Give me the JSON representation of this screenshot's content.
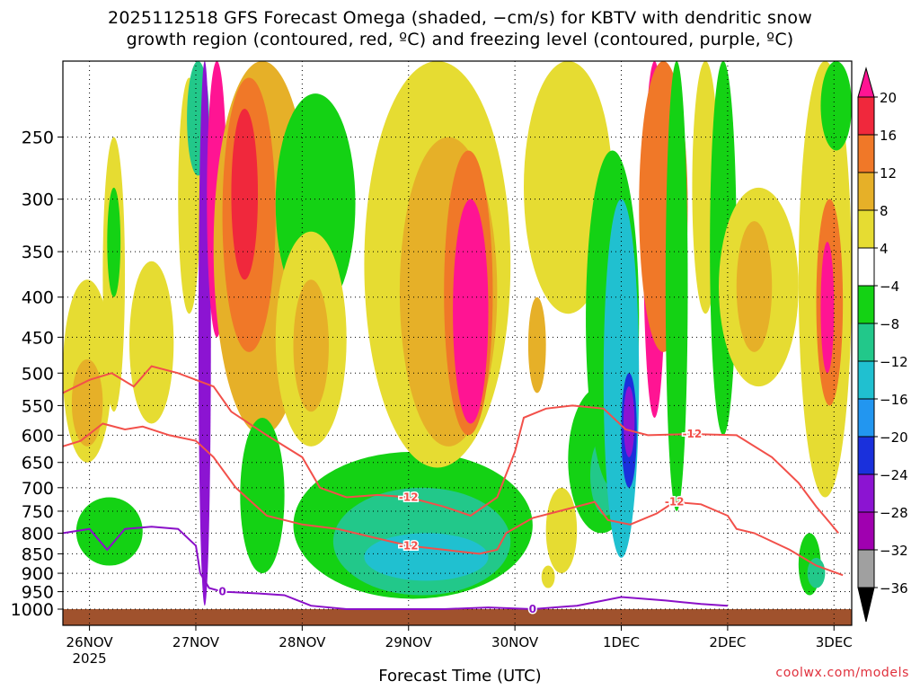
{
  "title_line1": "2025112518 GFS Forecast Omega (shaded, −cm/s) for KBTV with dendritic snow",
  "title_line2": "growth region (contoured, red, ºC) and freezing level (contoured, purple, ºC)",
  "xlabel": "Forecast Time (UTC)",
  "credit": "coolwx.com/models",
  "colors": {
    "snow_contour": "#f2504a",
    "freezing_contour": "#8a10c8",
    "ground": "#a0522d"
  },
  "chart_data": {
    "type": "heatmap",
    "x_ticks": [
      {
        "label": "26NOV",
        "sublabel": "2025",
        "value": 0
      },
      {
        "label": "27NOV",
        "value": 24
      },
      {
        "label": "28NOV",
        "value": 48
      },
      {
        "label": "29NOV",
        "value": 72
      },
      {
        "label": "30NOV",
        "value": 96
      },
      {
        "label": "1DEC",
        "value": 120
      },
      {
        "label": "2DEC",
        "value": 144
      },
      {
        "label": "3DEC",
        "value": 168
      }
    ],
    "xlim": [
      -6,
      172
    ],
    "y_ticks": [
      250,
      300,
      350,
      400,
      450,
      500,
      550,
      600,
      650,
      700,
      750,
      800,
      850,
      900,
      950,
      1000
    ],
    "ylim": [
      200,
      1000
    ],
    "y_scale": "log-pressure",
    "grid": true,
    "colorbar": {
      "ticks": [
        "20",
        "16",
        "12",
        "8",
        "4",
        "−4",
        "−8",
        "−12",
        "−16",
        "−20",
        "−24",
        "−28",
        "−32",
        "−36"
      ],
      "bins": [
        {
          "range": [
            20,
            99
          ],
          "color": "#ff1493"
        },
        {
          "range": [
            16,
            20
          ],
          "color": "#f0283c"
        },
        {
          "range": [
            12,
            16
          ],
          "color": "#f07828"
        },
        {
          "range": [
            8,
            12
          ],
          "color": "#e6b028"
        },
        {
          "range": [
            4,
            8
          ],
          "color": "#e6dc32"
        },
        {
          "range": [
            -4,
            4
          ],
          "color": "#ffffff"
        },
        {
          "range": [
            -8,
            -4
          ],
          "color": "#14d214"
        },
        {
          "range": [
            -12,
            -8
          ],
          "color": "#22c88a"
        },
        {
          "range": [
            -16,
            -12
          ],
          "color": "#20c0d0"
        },
        {
          "range": [
            -20,
            -16
          ],
          "color": "#2296f0"
        },
        {
          "range": [
            -24,
            -20
          ],
          "color": "#1a30dc"
        },
        {
          "range": [
            -28,
            -24
          ],
          "color": "#8c14d2"
        },
        {
          "range": [
            -32,
            -28
          ],
          "color": "#a000b0"
        },
        {
          "range": [
            -36,
            -32
          ],
          "color": "#a0a0a0"
        },
        {
          "range": [
            -99,
            -36
          ],
          "color": "#000000"
        }
      ]
    },
    "omega_regions": [
      {
        "value": 6,
        "x": [
          -6,
          5
        ],
        "p": [
          380,
          650
        ]
      },
      {
        "value": 10,
        "x": [
          -4,
          3
        ],
        "p": [
          480,
          620
        ]
      },
      {
        "value": 6,
        "x": [
          3,
          8
        ],
        "p": [
          250,
          560
        ]
      },
      {
        "value": 6,
        "x": [
          9,
          19
        ],
        "p": [
          360,
          580
        ]
      },
      {
        "value": -6,
        "x": [
          -3,
          12
        ],
        "p": [
          720,
          880
        ]
      },
      {
        "value": -6,
        "x": [
          4,
          7
        ],
        "p": [
          290,
          400
        ]
      },
      {
        "value": 6,
        "x": [
          20,
          25
        ],
        "p": [
          210,
          420
        ]
      },
      {
        "value": -10,
        "x": [
          22,
          27
        ],
        "p": [
          200,
          280
        ]
      },
      {
        "value": -26,
        "x": [
          24.6,
          27.4
        ],
        "p": [
          200,
          990
        ]
      },
      {
        "value": 22,
        "x": [
          26.5,
          31
        ],
        "p": [
          200,
          450
        ]
      },
      {
        "value": 8,
        "x": [
          28,
          50
        ],
        "p": [
          200,
          600
        ]
      },
      {
        "value": 14,
        "x": [
          30,
          42
        ],
        "p": [
          210,
          470
        ]
      },
      {
        "value": 18,
        "x": [
          32,
          38
        ],
        "p": [
          230,
          380
        ]
      },
      {
        "value": -6,
        "x": [
          34,
          44
        ],
        "p": [
          570,
          900
        ]
      },
      {
        "value": -6,
        "x": [
          42,
          60
        ],
        "p": [
          220,
          420
        ]
      },
      {
        "value": 6,
        "x": [
          42,
          58
        ],
        "p": [
          330,
          620
        ]
      },
      {
        "value": 10,
        "x": [
          46,
          54
        ],
        "p": [
          380,
          560
        ]
      },
      {
        "value": -6,
        "x": [
          46,
          100
        ],
        "p": [
          630,
          970
        ]
      },
      {
        "value": -10,
        "x": [
          55,
          95
        ],
        "p": [
          700,
          960
        ]
      },
      {
        "value": -14,
        "x": [
          62,
          90
        ],
        "p": [
          800,
          920
        ]
      },
      {
        "value": 6,
        "x": [
          62,
          95
        ],
        "p": [
          200,
          660
        ]
      },
      {
        "value": 10,
        "x": [
          70,
          92
        ],
        "p": [
          250,
          620
        ]
      },
      {
        "value": 14,
        "x": [
          80,
          91
        ],
        "p": [
          260,
          600
        ]
      },
      {
        "value": 22,
        "x": [
          82,
          90
        ],
        "p": [
          300,
          580
        ]
      },
      {
        "value": 6,
        "x": [
          98,
          118
        ],
        "p": [
          200,
          420
        ]
      },
      {
        "value": 10,
        "x": [
          99,
          103
        ],
        "p": [
          400,
          530
        ]
      },
      {
        "value": 6,
        "x": [
          103,
          110
        ],
        "p": [
          700,
          900
        ]
      },
      {
        "value": -6,
        "x": [
          108,
          123
        ],
        "p": [
          520,
          800
        ]
      },
      {
        "value": -10,
        "x": [
          113,
          120
        ],
        "p": [
          600,
          760
        ]
      },
      {
        "value": -6,
        "x": [
          112,
          124
        ],
        "p": [
          260,
          700
        ]
      },
      {
        "value": -14,
        "x": [
          116,
          124
        ],
        "p": [
          300,
          860
        ]
      },
      {
        "value": -22,
        "x": [
          120,
          123.5
        ],
        "p": [
          500,
          700
        ]
      },
      {
        "value": -26,
        "x": [
          120.5,
          123
        ],
        "p": [
          520,
          640
        ]
      },
      {
        "value": 22,
        "x": [
          125,
          130
        ],
        "p": [
          200,
          570
        ]
      },
      {
        "value": 14,
        "x": [
          124,
          135
        ],
        "p": [
          200,
          470
        ]
      },
      {
        "value": -6,
        "x": [
          130,
          135
        ],
        "p": [
          200,
          750
        ]
      },
      {
        "value": 6,
        "x": [
          136,
          142
        ],
        "p": [
          200,
          420
        ]
      },
      {
        "value": -6,
        "x": [
          140,
          146
        ],
        "p": [
          200,
          600
        ]
      },
      {
        "value": 6,
        "x": [
          142,
          160
        ],
        "p": [
          290,
          520
        ]
      },
      {
        "value": 10,
        "x": [
          146,
          154
        ],
        "p": [
          320,
          470
        ]
      },
      {
        "value": 6,
        "x": [
          160,
          172
        ],
        "p": [
          200,
          720
        ]
      },
      {
        "value": 14,
        "x": [
          164,
          170
        ],
        "p": [
          300,
          550
        ]
      },
      {
        "value": 22,
        "x": [
          165,
          168
        ],
        "p": [
          340,
          500
        ]
      },
      {
        "value": -6,
        "x": [
          165,
          172
        ],
        "p": [
          200,
          260
        ]
      },
      {
        "value": -6,
        "x": [
          160,
          165
        ],
        "p": [
          800,
          960
        ]
      },
      {
        "value": -10,
        "x": [
          162,
          166
        ],
        "p": [
          860,
          940
        ]
      },
      {
        "value": 6,
        "x": [
          102,
          105
        ],
        "p": [
          880,
          940
        ]
      }
    ],
    "contours": [
      {
        "label": "-12",
        "kind": "snow",
        "points": [
          [
            -6,
            530
          ],
          [
            0,
            510
          ],
          [
            5,
            500
          ],
          [
            10,
            520
          ],
          [
            14,
            490
          ],
          [
            20,
            500
          ],
          [
            28,
            520
          ],
          [
            32,
            560
          ],
          [
            40,
            600
          ],
          [
            48,
            640
          ],
          [
            52,
            700
          ],
          [
            58,
            720
          ],
          [
            65,
            715
          ],
          [
            72,
            720
          ],
          [
            80,
            740
          ],
          [
            86,
            760
          ],
          [
            92,
            720
          ],
          [
            96,
            630
          ],
          [
            98,
            570
          ],
          [
            103,
            555
          ],
          [
            109,
            550
          ],
          [
            116,
            555
          ],
          [
            121,
            590
          ],
          [
            126,
            600
          ],
          [
            136,
            598
          ],
          [
            146,
            600
          ],
          [
            154,
            640
          ],
          [
            160,
            690
          ],
          [
            164,
            740
          ],
          [
            167,
            775
          ],
          [
            169,
            800
          ]
        ]
      },
      {
        "label": "-12",
        "kind": "snow",
        "points": [
          [
            -6,
            620
          ],
          [
            -2,
            610
          ],
          [
            3,
            580
          ],
          [
            8,
            590
          ],
          [
            12,
            585
          ],
          [
            18,
            600
          ],
          [
            24,
            610
          ],
          [
            28,
            640
          ],
          [
            33,
            700
          ],
          [
            40,
            760
          ],
          [
            48,
            780
          ],
          [
            56,
            790
          ],
          [
            64,
            810
          ],
          [
            72,
            830
          ],
          [
            80,
            840
          ],
          [
            88,
            850
          ],
          [
            92,
            840
          ],
          [
            94,
            800
          ],
          [
            100,
            765
          ],
          [
            108,
            745
          ],
          [
            114,
            730
          ],
          [
            117,
            770
          ],
          [
            122,
            780
          ],
          [
            128,
            755
          ],
          [
            132,
            730
          ],
          [
            138,
            735
          ],
          [
            144,
            760
          ],
          [
            146,
            790
          ],
          [
            150,
            800
          ],
          [
            158,
            840
          ],
          [
            164,
            880
          ],
          [
            170,
            905
          ]
        ]
      },
      {
        "label": "0",
        "kind": "freezing",
        "points": [
          [
            -6,
            800
          ],
          [
            0,
            790
          ],
          [
            4,
            840
          ],
          [
            8,
            790
          ],
          [
            14,
            785
          ],
          [
            20,
            790
          ],
          [
            24,
            830
          ],
          [
            25,
            900
          ],
          [
            27,
            940
          ],
          [
            30,
            950
          ],
          [
            38,
            955
          ],
          [
            44,
            960
          ],
          [
            50,
            990
          ],
          [
            58,
            1000
          ],
          [
            70,
            1000
          ],
          [
            80,
            1000
          ],
          [
            90,
            995
          ],
          [
            100,
            1000
          ],
          [
            110,
            990
          ],
          [
            120,
            965
          ],
          [
            130,
            975
          ],
          [
            138,
            985
          ],
          [
            144,
            990
          ]
        ]
      }
    ]
  }
}
